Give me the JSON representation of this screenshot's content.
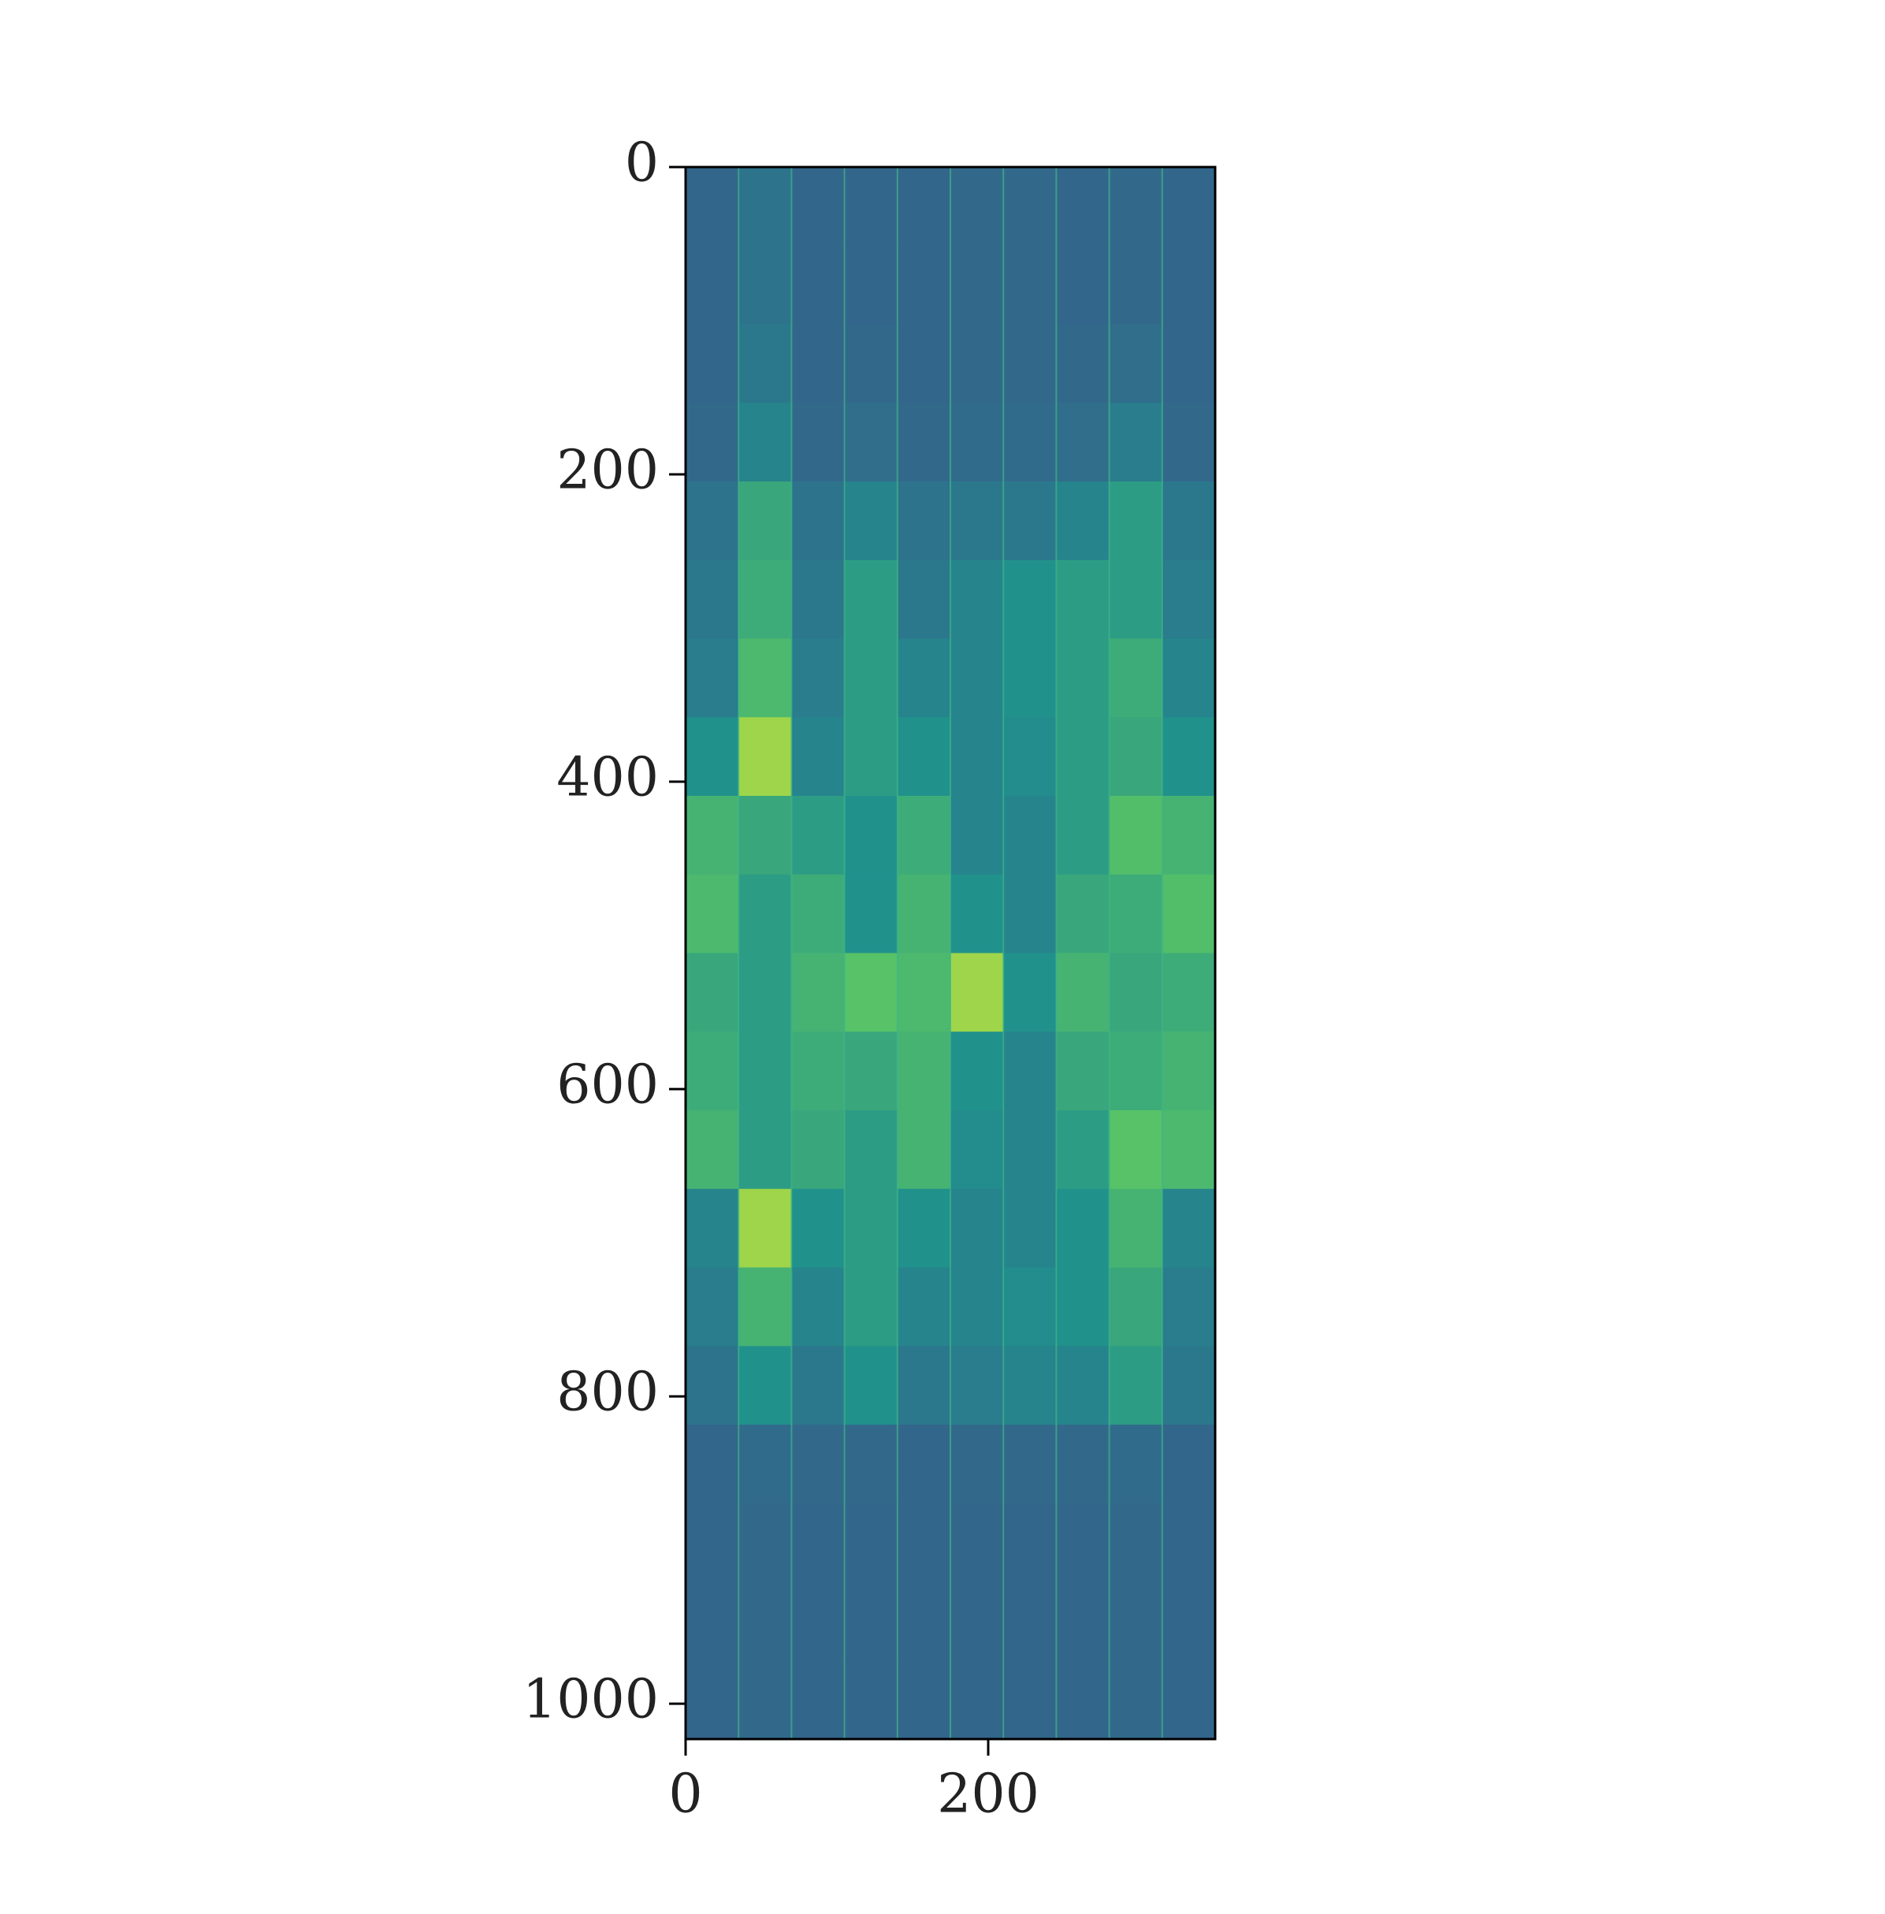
{
  "chart_data": {
    "type": "heatmap",
    "colormap": "viridis",
    "xlim": [
      0,
      350
    ],
    "ylim": [
      1023,
      0
    ],
    "xticks": [
      0,
      200
    ],
    "yticks": [
      0,
      200,
      400,
      600,
      800,
      1000
    ],
    "values": [
      [
        0.33,
        0.38,
        0.33,
        0.33,
        0.33,
        0.34,
        0.34,
        0.33,
        0.34,
        0.33
      ],
      [
        0.33,
        0.38,
        0.33,
        0.33,
        0.33,
        0.34,
        0.34,
        0.33,
        0.34,
        0.33
      ],
      [
        0.33,
        0.4,
        0.33,
        0.34,
        0.33,
        0.34,
        0.34,
        0.34,
        0.36,
        0.33
      ],
      [
        0.34,
        0.45,
        0.34,
        0.36,
        0.34,
        0.35,
        0.35,
        0.36,
        0.42,
        0.34
      ],
      [
        0.38,
        0.6,
        0.38,
        0.45,
        0.38,
        0.4,
        0.4,
        0.45,
        0.55,
        0.4
      ],
      [
        0.4,
        0.62,
        0.4,
        0.55,
        0.4,
        0.45,
        0.5,
        0.55,
        0.55,
        0.42
      ],
      [
        0.42,
        0.68,
        0.42,
        0.55,
        0.45,
        0.45,
        0.5,
        0.55,
        0.62,
        0.45
      ],
      [
        0.5,
        0.85,
        0.45,
        0.55,
        0.5,
        0.45,
        0.48,
        0.55,
        0.6,
        0.5
      ],
      [
        0.65,
        0.6,
        0.55,
        0.5,
        0.62,
        0.45,
        0.45,
        0.55,
        0.7,
        0.65
      ],
      [
        0.68,
        0.55,
        0.62,
        0.5,
        0.65,
        0.5,
        0.45,
        0.6,
        0.62,
        0.7
      ],
      [
        0.6,
        0.55,
        0.65,
        0.72,
        0.68,
        0.85,
        0.5,
        0.65,
        0.6,
        0.62
      ],
      [
        0.62,
        0.55,
        0.62,
        0.6,
        0.65,
        0.5,
        0.45,
        0.6,
        0.62,
        0.65
      ],
      [
        0.65,
        0.55,
        0.6,
        0.55,
        0.65,
        0.48,
        0.45,
        0.55,
        0.72,
        0.68
      ],
      [
        0.45,
        0.85,
        0.5,
        0.55,
        0.5,
        0.45,
        0.45,
        0.5,
        0.65,
        0.45
      ],
      [
        0.42,
        0.65,
        0.45,
        0.55,
        0.45,
        0.45,
        0.48,
        0.5,
        0.6,
        0.42
      ],
      [
        0.38,
        0.5,
        0.4,
        0.5,
        0.4,
        0.42,
        0.45,
        0.45,
        0.55,
        0.4
      ],
      [
        0.33,
        0.35,
        0.34,
        0.34,
        0.33,
        0.34,
        0.34,
        0.34,
        0.35,
        0.33
      ],
      [
        0.33,
        0.34,
        0.33,
        0.33,
        0.33,
        0.33,
        0.33,
        0.33,
        0.34,
        0.33
      ],
      [
        0.33,
        0.34,
        0.33,
        0.33,
        0.33,
        0.33,
        0.33,
        0.33,
        0.34,
        0.33
      ],
      [
        0.33,
        0.34,
        0.33,
        0.33,
        0.33,
        0.33,
        0.33,
        0.33,
        0.34,
        0.33
      ]
    ]
  }
}
